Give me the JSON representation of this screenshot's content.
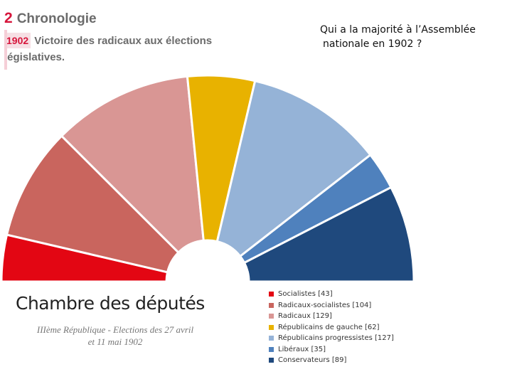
{
  "header": {
    "section_number": "2",
    "section_title": "Chronologie",
    "event_year": "1902",
    "event_text_line1": "Victoire des radicaux aux élections",
    "event_text_line2": "législatives."
  },
  "question": {
    "line1": "Qui a la majorité à l’Assemblée",
    "line2": "nationale en 1902 ?"
  },
  "chamber": {
    "title": "Chambre des députés",
    "subtitle_line1": "IIIème République - Elections des 27 avril",
    "subtitle_line2": "et 11 mai 1902"
  },
  "colors": {
    "accent": "#d6153b",
    "socialistes": "#e30613",
    "radicaux_socialistes": "#c9655e",
    "radicaux": "#d99694",
    "republicains_gauche": "#e8b200",
    "republicains_progressistes": "#95b3d7",
    "liberaux": "#4f81bd",
    "conservateurs": "#1f497d"
  },
  "chart_data": {
    "type": "pie",
    "subtype": "hemicycle",
    "title": "Chambre des députés",
    "categories": [
      "Socialistes",
      "Radicaux-socialistes",
      "Radicaux",
      "Républicains de gauche",
      "Républicains progressistes",
      "Libéraux",
      "Conservateurs"
    ],
    "values": [
      43,
      104,
      129,
      62,
      127,
      35,
      89
    ],
    "series": [
      {
        "name": "Socialistes",
        "value": 43,
        "legend": "Socialistes [43]",
        "color": "#e30613"
      },
      {
        "name": "Radicaux-socialistes",
        "value": 104,
        "legend": "Radicaux-socialistes [104]",
        "color": "#c9655e"
      },
      {
        "name": "Radicaux",
        "value": 129,
        "legend": "Radicaux [129]",
        "color": "#d99694"
      },
      {
        "name": "Républicains de gauche",
        "value": 62,
        "legend": "Républicains de gauche [62]",
        "color": "#e8b200"
      },
      {
        "name": "Républicains progressistes",
        "value": 127,
        "legend": "Républicains progressistes [127]",
        "color": "#95b3d7"
      },
      {
        "name": "Libéraux",
        "value": 35,
        "legend": "Libéraux [35]",
        "color": "#4f81bd"
      },
      {
        "name": "Conservateurs",
        "value": 89,
        "legend": "Conservateurs [89]",
        "color": "#1f497d"
      }
    ],
    "legend_position": "bottom-right"
  }
}
